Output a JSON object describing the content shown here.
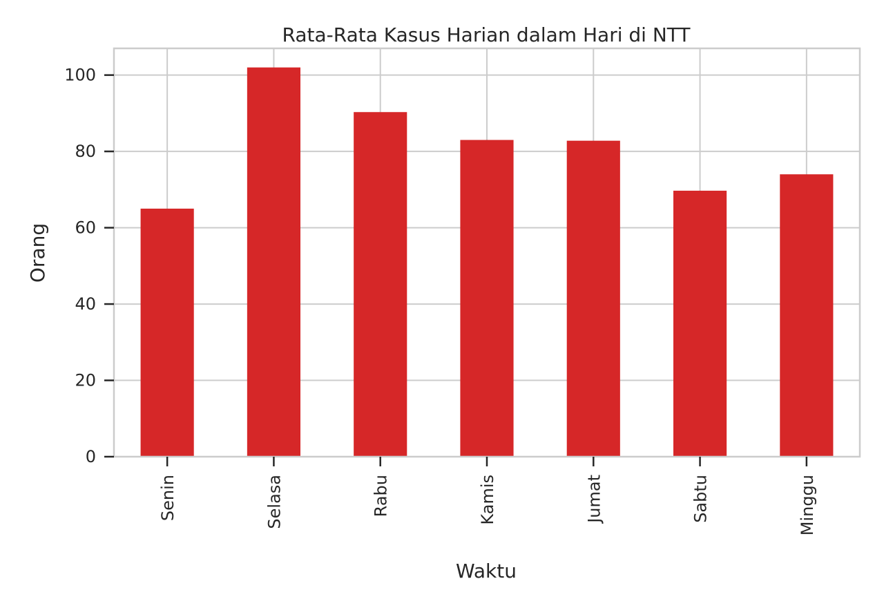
{
  "chart_data": {
    "type": "bar",
    "title": "Rata-Rata Kasus Harian dalam Hari di NTT",
    "xlabel": "Waktu",
    "ylabel": "Orang",
    "categories": [
      "Senin",
      "Selasa",
      "Rabu",
      "Kamis",
      "Jumat",
      "Sabtu",
      "Minggu"
    ],
    "values": [
      65,
      102,
      90.3,
      83,
      82.8,
      69.7,
      74
    ],
    "ylim": [
      0,
      107
    ],
    "yticks": [
      0,
      20,
      40,
      60,
      80,
      100
    ],
    "grid": true,
    "legend": "none",
    "bar_color": "#d62728"
  }
}
